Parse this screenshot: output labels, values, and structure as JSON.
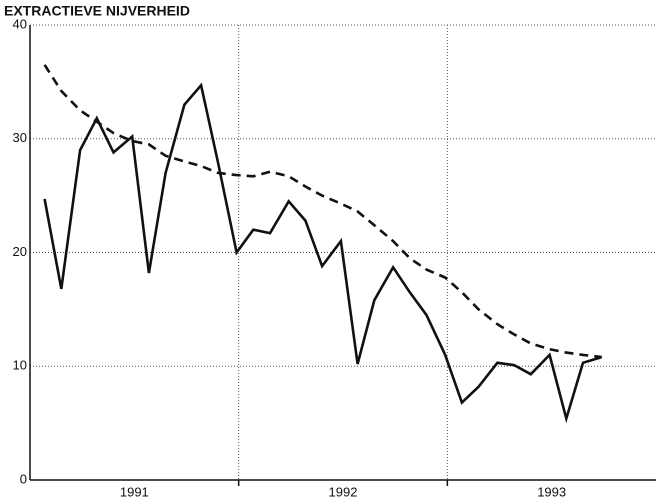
{
  "chart_data": {
    "type": "line",
    "title": "EXTRACTIEVE NIJVERHEID",
    "categories": [
      "1991",
      "1992",
      "1993"
    ],
    "x": [
      1991.07,
      1991.15,
      1991.24,
      1991.32,
      1991.4,
      1991.49,
      1991.57,
      1991.65,
      1991.74,
      1991.82,
      1991.9,
      1991.99,
      1992.07,
      1992.15,
      1992.24,
      1992.32,
      1992.4,
      1992.49,
      1992.57,
      1992.65,
      1992.74,
      1992.82,
      1992.9,
      1992.99,
      1993.07,
      1993.15,
      1993.24,
      1993.32,
      1993.4,
      1993.49,
      1993.57,
      1993.65,
      1993.74
    ],
    "series": [
      {
        "color": "#111111",
        "dash": false,
        "values": [
          24.7,
          16.8,
          29,
          31.8,
          28.8,
          30.2,
          18.2,
          27,
          33,
          34.7,
          28,
          20,
          22,
          21.7,
          24.5,
          22.8,
          18.8,
          21,
          10.2,
          15.8,
          18.7,
          16.5,
          14.5,
          11,
          6.8,
          8.2,
          10.3,
          10.1,
          9.3,
          11,
          5.4,
          10.3,
          10.8
        ]
      },
      {
        "color": "#111111",
        "dash": true,
        "values": [
          36.5,
          34.2,
          32.5,
          31.5,
          30.5,
          29.8,
          29.5,
          28.5,
          28,
          27.6,
          27,
          26.8,
          26.7,
          27.1,
          26.7,
          25.8,
          25,
          24.3,
          23.6,
          22.4,
          21,
          19.5,
          18.5,
          17.8,
          16.5,
          15,
          13.7,
          12.8,
          12,
          11.5,
          11.2,
          11,
          10.8
        ]
      }
    ],
    "xlim": [
      1991,
      1994
    ],
    "xticks": [
      1992,
      1993
    ],
    "ylim": [
      0,
      40
    ],
    "yticks": [
      0,
      10,
      20,
      30,
      40
    ],
    "grid": true
  }
}
